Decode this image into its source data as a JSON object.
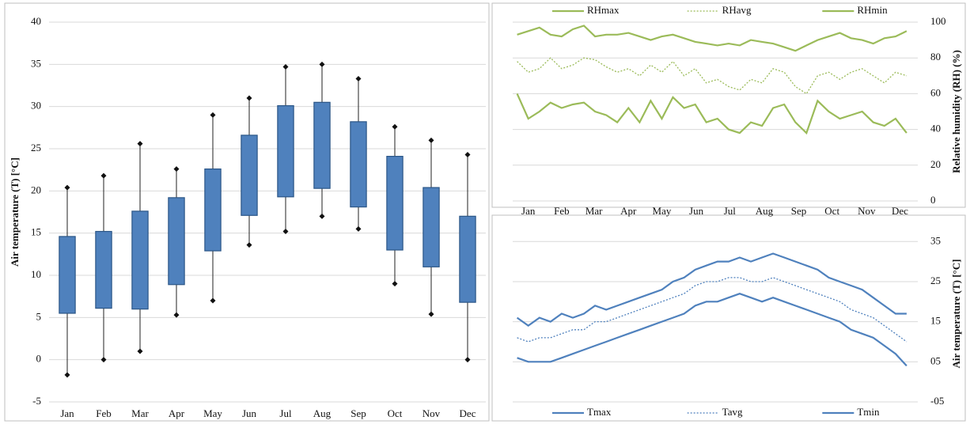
{
  "chart_data": [
    {
      "type": "box",
      "ylabel": "Air temperature (T) [°C]",
      "categories": [
        "Jan",
        "Feb",
        "Mar",
        "Apr",
        "May",
        "Jun",
        "Jul",
        "Aug",
        "Sep",
        "Oct",
        "Nov",
        "Dec"
      ],
      "min": [
        -1.8,
        0,
        1,
        5.3,
        7,
        13.6,
        15.2,
        17,
        15.5,
        9,
        5.4,
        0
      ],
      "q1": [
        5.5,
        6.1,
        6,
        8.9,
        12.9,
        17.1,
        19.3,
        20.3,
        18.1,
        13,
        11,
        6.8
      ],
      "q3": [
        14.6,
        15.2,
        17.6,
        19.2,
        22.6,
        26.6,
        30.1,
        30.5,
        28.2,
        24.1,
        20.4,
        17
      ],
      "max": [
        20.4,
        21.8,
        25.6,
        22.6,
        29,
        31,
        34.7,
        35,
        33.3,
        27.6,
        26,
        24.3
      ],
      "color": "#4f81bd",
      "ylim": [
        -5,
        40
      ],
      "yticks": [
        -5,
        0,
        5,
        10,
        15,
        20,
        25,
        30,
        35,
        40
      ],
      "grid": true,
      "yaxis_position": "left"
    },
    {
      "type": "line",
      "ylabel": "Relative humidity (RH) (%)",
      "x": [
        5,
        15,
        25,
        35,
        45,
        55,
        65,
        75,
        85,
        95,
        105,
        115,
        125,
        135,
        145,
        155,
        165,
        175,
        185,
        195,
        205,
        215,
        225,
        235,
        245,
        255,
        265,
        275,
        285,
        295,
        305,
        315,
        325,
        335,
        345,
        355
      ],
      "xlim": [
        1,
        365
      ],
      "xticks": [
        {
          "value": 15,
          "label": "Jan"
        },
        {
          "value": 45,
          "label": "Feb"
        },
        {
          "value": 74,
          "label": "Mar"
        },
        {
          "value": 105,
          "label": "Apr"
        },
        {
          "value": 135,
          "label": "May"
        },
        {
          "value": 166,
          "label": "Jun"
        },
        {
          "value": 196,
          "label": "Jul"
        },
        {
          "value": 227,
          "label": "Aug"
        },
        {
          "value": 258,
          "label": "Sep"
        },
        {
          "value": 288,
          "label": "Oct"
        },
        {
          "value": 319,
          "label": "Nov"
        },
        {
          "value": 349,
          "label": "Dec"
        }
      ],
      "ylim": [
        0,
        100
      ],
      "yticks": [
        0,
        20,
        40,
        60,
        80,
        100
      ],
      "grid": true,
      "yaxis_position": "right",
      "legend": "top",
      "series": [
        {
          "name": "RHmax",
          "color": "#9bbb59",
          "dash": "solid",
          "values": [
            93,
            95,
            97,
            93,
            92,
            96,
            98,
            92,
            93,
            93,
            94,
            92,
            90,
            92,
            93,
            91,
            89,
            88,
            87,
            88,
            87,
            90,
            89,
            88,
            86,
            84,
            87,
            90,
            92,
            94,
            91,
            90,
            88,
            91,
            92,
            95
          ]
        },
        {
          "name": "RHavg",
          "color": "#9bbb59",
          "dash": "dotted",
          "values": [
            78,
            72,
            74,
            80,
            74,
            76,
            80,
            79,
            75,
            72,
            74,
            70,
            76,
            72,
            78,
            70,
            74,
            66,
            68,
            64,
            62,
            68,
            66,
            74,
            72,
            64,
            60,
            70,
            72,
            68,
            72,
            74,
            70,
            66,
            72,
            70
          ]
        },
        {
          "name": "RHmin",
          "color": "#9bbb59",
          "dash": "solid",
          "values": [
            60,
            46,
            50,
            55,
            52,
            54,
            55,
            50,
            48,
            44,
            52,
            44,
            56,
            46,
            58,
            52,
            54,
            44,
            46,
            40,
            38,
            44,
            42,
            52,
            54,
            44,
            38,
            56,
            50,
            46,
            48,
            50,
            44,
            42,
            46,
            38
          ]
        }
      ]
    },
    {
      "type": "line",
      "ylabel": "Air temperature (T) [°C]",
      "x": [
        5,
        15,
        25,
        35,
        45,
        55,
        65,
        75,
        85,
        95,
        105,
        115,
        125,
        135,
        145,
        155,
        165,
        175,
        185,
        195,
        205,
        215,
        225,
        235,
        245,
        255,
        265,
        275,
        285,
        295,
        305,
        315,
        325,
        335,
        345,
        355
      ],
      "xlim": [
        1,
        365
      ],
      "ylim": [
        -5,
        39
      ],
      "yticks": [
        35,
        25,
        15,
        {
          "value": 5,
          "label": "05"
        },
        {
          "value": -5,
          "label": "-05"
        }
      ],
      "grid": true,
      "yaxis_position": "right",
      "legend": "bottom",
      "series": [
        {
          "name": "Tmax",
          "color": "#4f81bd",
          "dash": "solid",
          "values": [
            16,
            14,
            16,
            15,
            17,
            16,
            17,
            19,
            18,
            19,
            20,
            21,
            22,
            23,
            25,
            26,
            28,
            29,
            30,
            30,
            31,
            30,
            31,
            32,
            31,
            30,
            29,
            28,
            26,
            25,
            24,
            23,
            21,
            19,
            17,
            17
          ]
        },
        {
          "name": "Tavg",
          "color": "#4f81bd",
          "dash": "dotted",
          "values": [
            11,
            10,
            11,
            11,
            12,
            13,
            13,
            15,
            15,
            16,
            17,
            18,
            19,
            20,
            21,
            22,
            24,
            25,
            25,
            26,
            26,
            25,
            25,
            26,
            25,
            24,
            23,
            22,
            21,
            20,
            18,
            17,
            16,
            14,
            12,
            10
          ]
        },
        {
          "name": "Tmin",
          "color": "#4f81bd",
          "dash": "solid",
          "values": [
            6,
            5,
            5,
            5,
            6,
            7,
            8,
            9,
            10,
            11,
            12,
            13,
            14,
            15,
            16,
            17,
            19,
            20,
            20,
            21,
            22,
            21,
            20,
            21,
            20,
            19,
            18,
            17,
            16,
            15,
            13,
            12,
            11,
            9,
            7,
            4
          ]
        }
      ]
    }
  ]
}
